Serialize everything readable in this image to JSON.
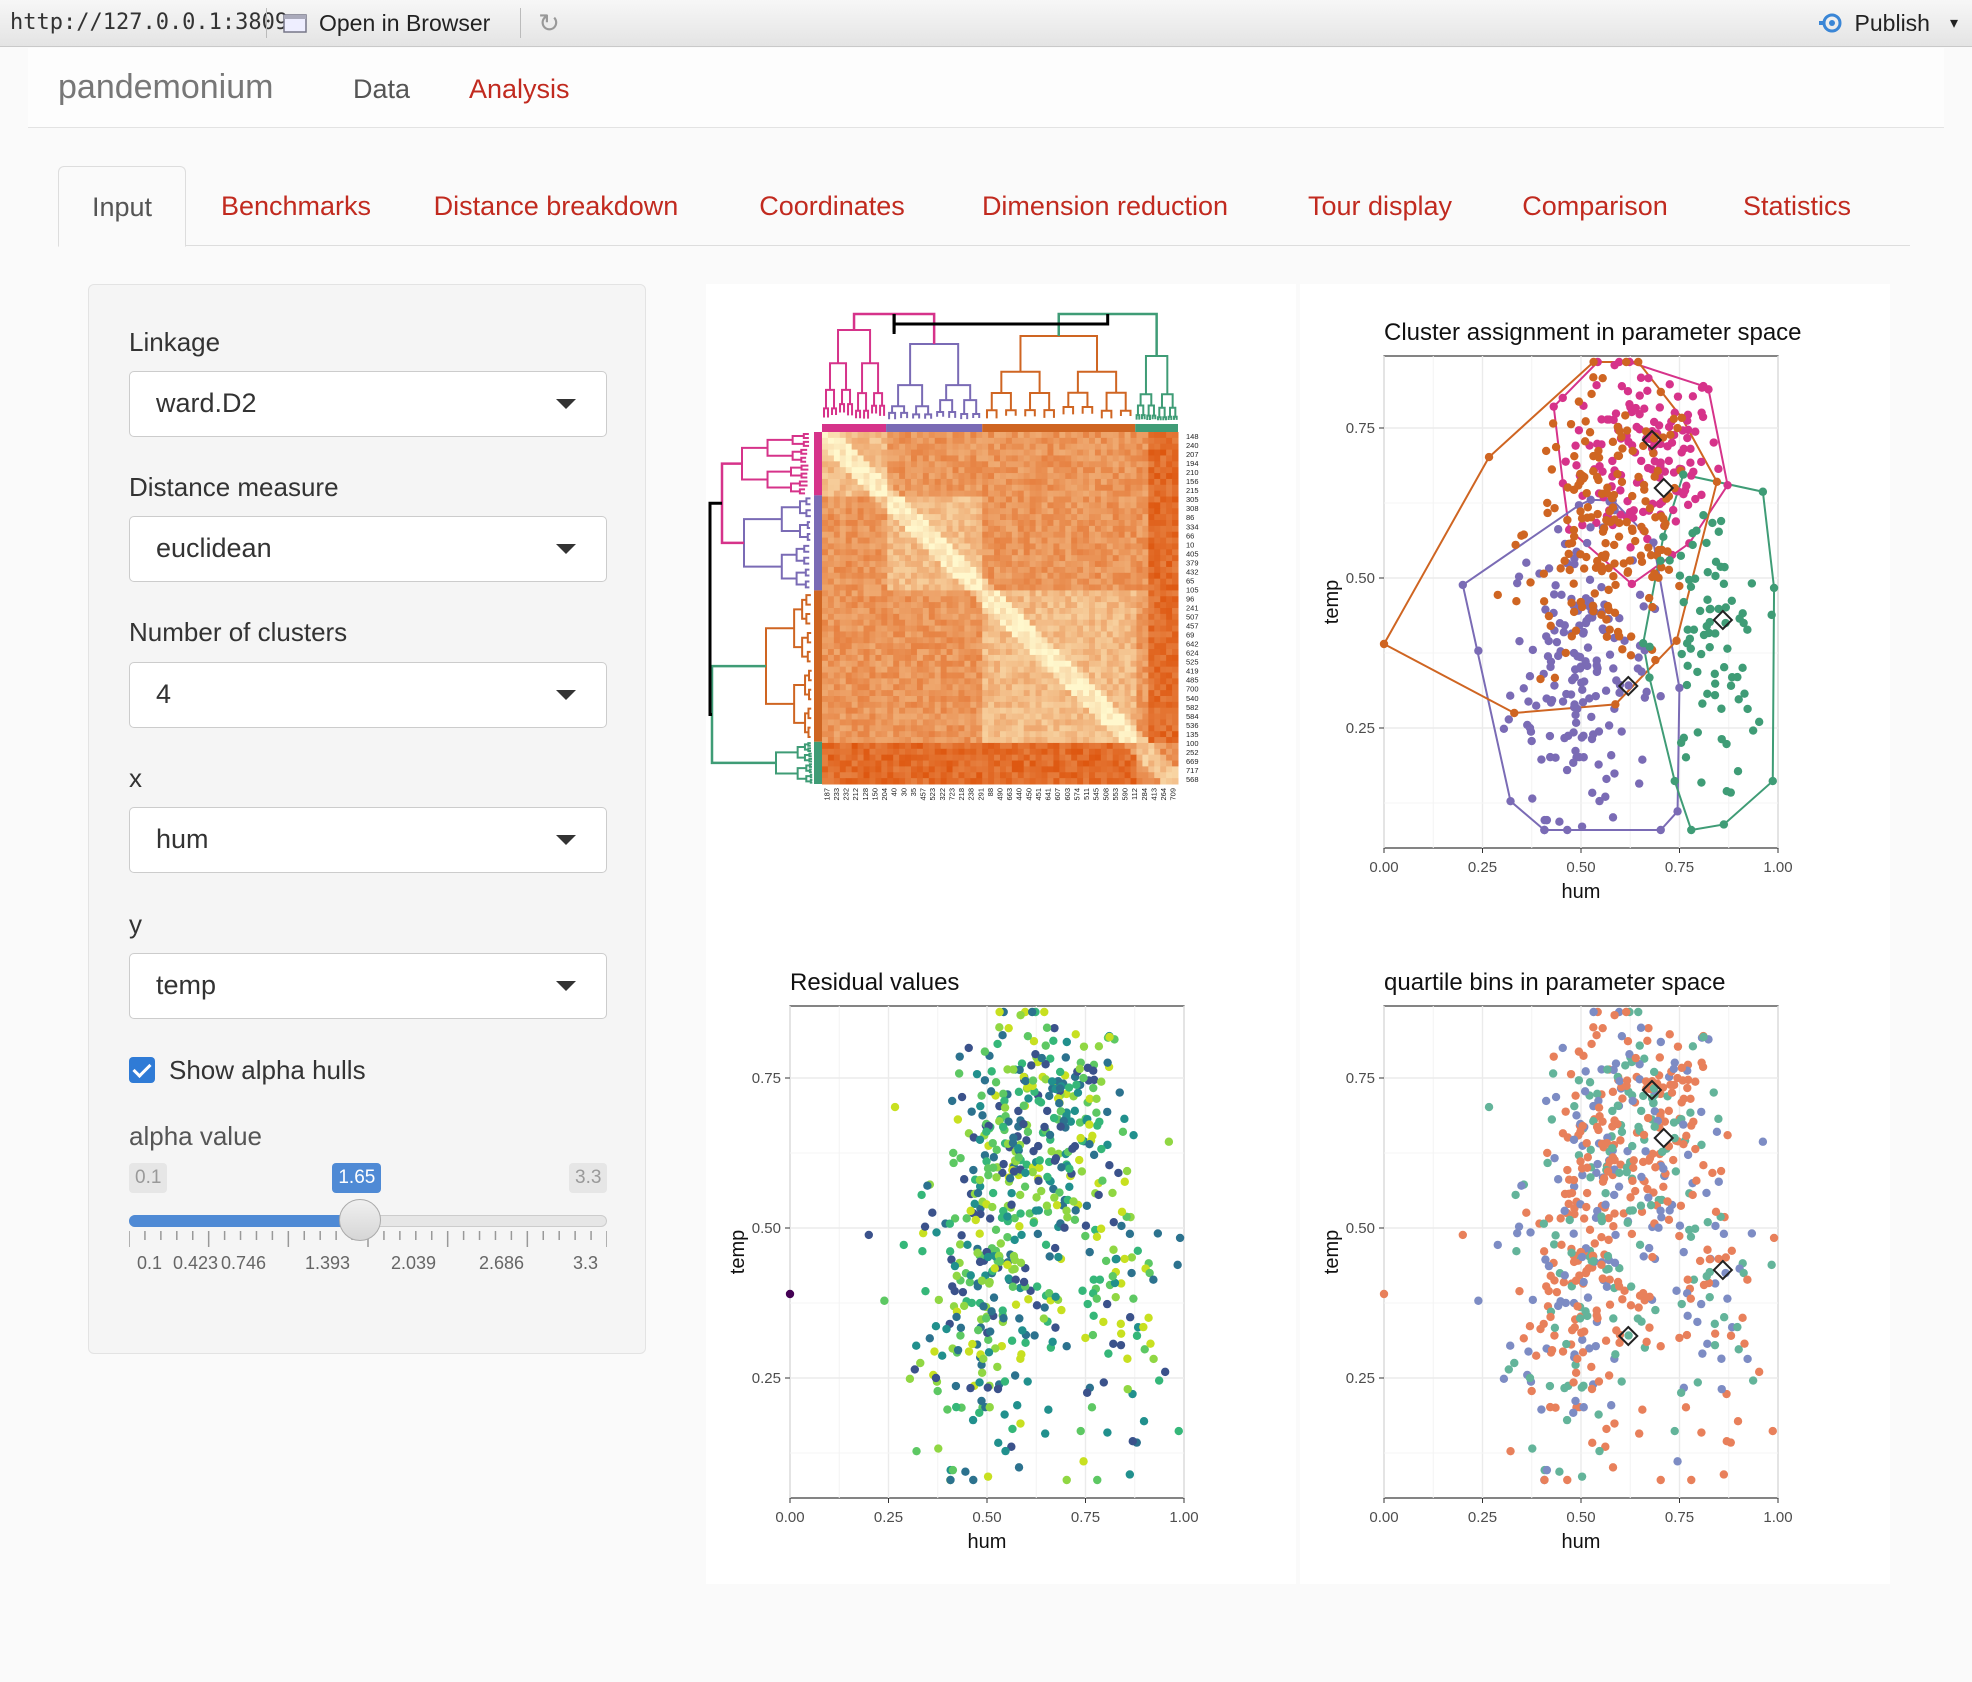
{
  "browser": {
    "url": "http://127.0.0.1:3809",
    "open_label": "Open in Browser",
    "publish_label": "Publish"
  },
  "navbar": {
    "brand": "pandemonium",
    "items": [
      "Data",
      "Analysis"
    ],
    "active": "Analysis",
    "colors": {
      "inactive": "#555555",
      "active": "#c12a1f"
    }
  },
  "tabs": [
    "Input",
    "Benchmarks",
    "Distance breakdown",
    "Coordinates",
    "Dimension reduction",
    "Tour display",
    "Comparison",
    "Statistics"
  ],
  "active_tab": "Input",
  "sidebar": {
    "linkage": {
      "label": "Linkage",
      "value": "ward.D2"
    },
    "distance": {
      "label": "Distance measure",
      "value": "euclidean"
    },
    "clusters": {
      "label": "Number of clusters",
      "value": "4"
    },
    "x": {
      "label": "x",
      "value": "hum"
    },
    "y": {
      "label": "y",
      "value": "temp"
    },
    "hulls": {
      "label": "Show alpha hulls",
      "checked": true
    },
    "alpha": {
      "label": "alpha value",
      "min": "0.1",
      "max": "3.3",
      "value": "1.65",
      "fraction": 0.484,
      "ticks": [
        "0.1",
        "0.423",
        "0.746",
        "1.393",
        "2.039",
        "2.686",
        "3.3"
      ]
    }
  },
  "heatmap": {
    "row_labels": [
      "148",
      "240",
      "207",
      "194",
      "210",
      "156",
      "215",
      "305",
      "308",
      "86",
      "334",
      "66",
      "10",
      "405",
      "379",
      "432",
      "65",
      "105",
      "96",
      "241",
      "507",
      "457",
      "69",
      "642",
      "624",
      "525",
      "419",
      "485",
      "700",
      "540",
      "582",
      "584",
      "536",
      "135",
      "100",
      "252",
      "669",
      "717",
      "568"
    ],
    "col_labels": [
      "187",
      "233",
      "232",
      "212",
      "128",
      "150",
      "204",
      "40",
      "30",
      "35",
      "457",
      "523",
      "322",
      "723",
      "218",
      "238",
      "291",
      "88",
      "490",
      "663",
      "440",
      "450",
      "451",
      "641",
      "607",
      "603",
      "574",
      "511",
      "545",
      "508",
      "553",
      "590",
      "112",
      "284",
      "413",
      "264",
      "709"
    ],
    "colors": [
      "#d6338a",
      "#7a6bb5",
      "#cf6522",
      "#3f9c76",
      "#000000"
    ]
  },
  "chart_data": [
    {
      "type": "scatter",
      "title": "Cluster assignment in parameter space",
      "xlabel": "hum",
      "ylabel": "temp",
      "xlim": [
        0.0,
        1.0
      ],
      "ylim": [
        0.05,
        0.87
      ],
      "xticks": [
        "0.00",
        "0.25",
        "0.50",
        "0.75",
        "1.00"
      ],
      "yticks": [
        "0.25",
        "0.50",
        "0.75"
      ],
      "series": [
        {
          "color": "#d6338a",
          "cx": 0.66,
          "cy": 0.7,
          "sx": 0.1,
          "sy": 0.08,
          "n": 150
        },
        {
          "color": "#7a6bb5",
          "cx": 0.5,
          "cy": 0.35,
          "sx": 0.09,
          "sy": 0.12,
          "n": 180
        },
        {
          "color": "#cf6522",
          "cx": 0.58,
          "cy": 0.58,
          "sx": 0.11,
          "sy": 0.12,
          "n": 190
        },
        {
          "color": "#3f9c76",
          "cx": 0.82,
          "cy": 0.38,
          "sx": 0.07,
          "sy": 0.13,
          "n": 90
        }
      ],
      "markers": [
        [
          0.68,
          0.73
        ],
        [
          0.71,
          0.65
        ],
        [
          0.62,
          0.32
        ],
        [
          0.86,
          0.43
        ]
      ]
    },
    {
      "type": "scatter",
      "title": "Residual values",
      "xlabel": "hum",
      "ylabel": "temp",
      "xlim": [
        0.0,
        1.0
      ],
      "ylim": [
        0.05,
        0.87
      ],
      "xticks": [
        "0.00",
        "0.25",
        "0.50",
        "0.75",
        "1.00"
      ],
      "yticks": [
        "0.25",
        "0.50",
        "0.75"
      ],
      "palette": [
        "#3b528b",
        "#21908d",
        "#35b779",
        "#5dc863",
        "#90d743",
        "#c8e020",
        "#2c728e",
        "#440154"
      ]
    },
    {
      "type": "scatter",
      "title": "quartile bins in parameter space",
      "xlabel": "hum",
      "ylabel": "temp",
      "xlim": [
        0.0,
        1.0
      ],
      "ylim": [
        0.05,
        0.87
      ],
      "xticks": [
        "0.00",
        "0.25",
        "0.50",
        "0.75",
        "1.00"
      ],
      "yticks": [
        "0.25",
        "0.50",
        "0.75"
      ],
      "palette": [
        "#e8805b",
        "#e8805b",
        "#7d8cc4",
        "#63b49a"
      ],
      "markers": [
        [
          0.68,
          0.73
        ],
        [
          0.71,
          0.65
        ],
        [
          0.62,
          0.32
        ],
        [
          0.86,
          0.43
        ]
      ]
    }
  ]
}
